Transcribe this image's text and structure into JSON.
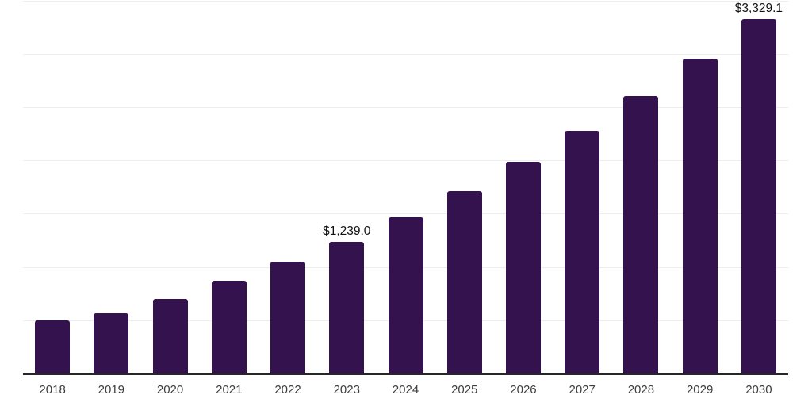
{
  "chart_data": {
    "type": "bar",
    "title": "",
    "xlabel": "",
    "ylabel": "",
    "categories": [
      "2018",
      "2019",
      "2020",
      "2021",
      "2022",
      "2023",
      "2024",
      "2025",
      "2026",
      "2027",
      "2028",
      "2029",
      "2030"
    ],
    "values": [
      505,
      570,
      705,
      875,
      1055,
      1239.0,
      1470,
      1715,
      1990,
      2285,
      2610,
      2960,
      3329.1
    ],
    "value_labels": {
      "2023": "$1,239.0",
      "2030": "$3,329.1"
    },
    "ylim": [
      0,
      3500
    ],
    "gridline_step": 500,
    "grid": true,
    "legend": false,
    "y_axis_labels_visible": false,
    "colors": {
      "bar": "#33124E",
      "axis_line": "#262626",
      "gridline": "#ededed",
      "tick_label": "#3d3d3d",
      "data_label": "#111111",
      "background": "#ffffff"
    }
  }
}
